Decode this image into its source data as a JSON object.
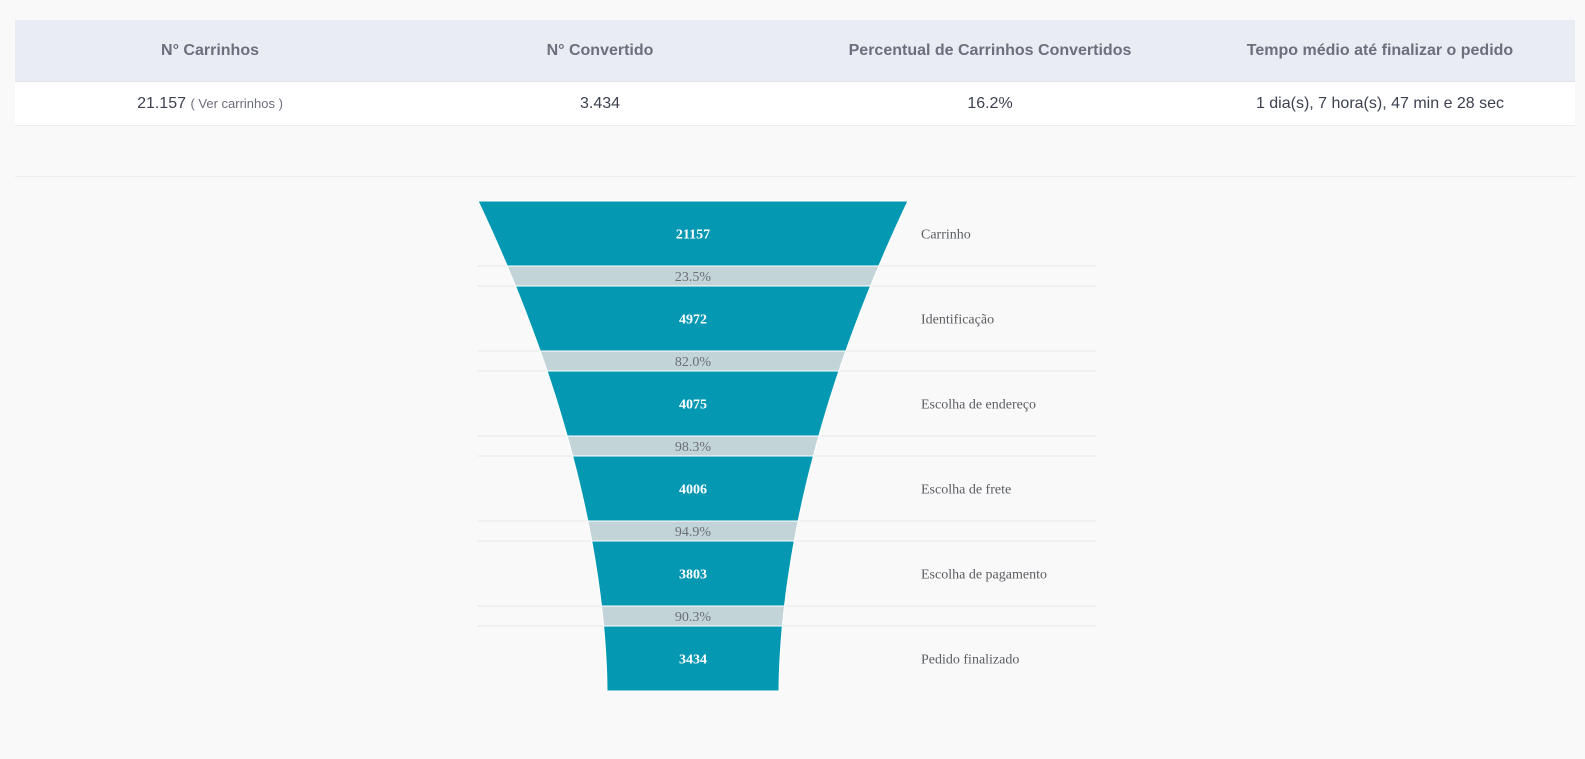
{
  "summary": {
    "headers": [
      "N° Carrinhos",
      "N° Convertido",
      "Percentual de Carrinhos Convertidos",
      "Tempo médio até finalizar o pedido"
    ],
    "carts_value": "21.157",
    "carts_link": "( Ver carrinhos )",
    "converted_value": "3.434",
    "converted_percent": "16.2%",
    "avg_time": "1 dia(s), 7 hora(s), 47 min e 28 sec"
  },
  "chart_data": {
    "type": "funnel",
    "stages": [
      {
        "label": "Carrinho",
        "value": 21157,
        "display": "21157"
      },
      {
        "label": "Identificação",
        "value": 4972,
        "display": "4972"
      },
      {
        "label": "Escolha de endereço",
        "value": 4075,
        "display": "4075"
      },
      {
        "label": "Escolha de frete",
        "value": 4006,
        "display": "4006"
      },
      {
        "label": "Escolha de pagamento",
        "value": 3803,
        "display": "3803"
      },
      {
        "label": "Pedido finalizado",
        "value": 3434,
        "display": "3434"
      }
    ],
    "conversion_rates": [
      "23.5%",
      "82.0%",
      "98.3%",
      "94.9%",
      "90.3%"
    ],
    "colors": {
      "stage": "#0598b3",
      "gap": "#c3d4d8",
      "separator": "#e6e6e6"
    }
  }
}
